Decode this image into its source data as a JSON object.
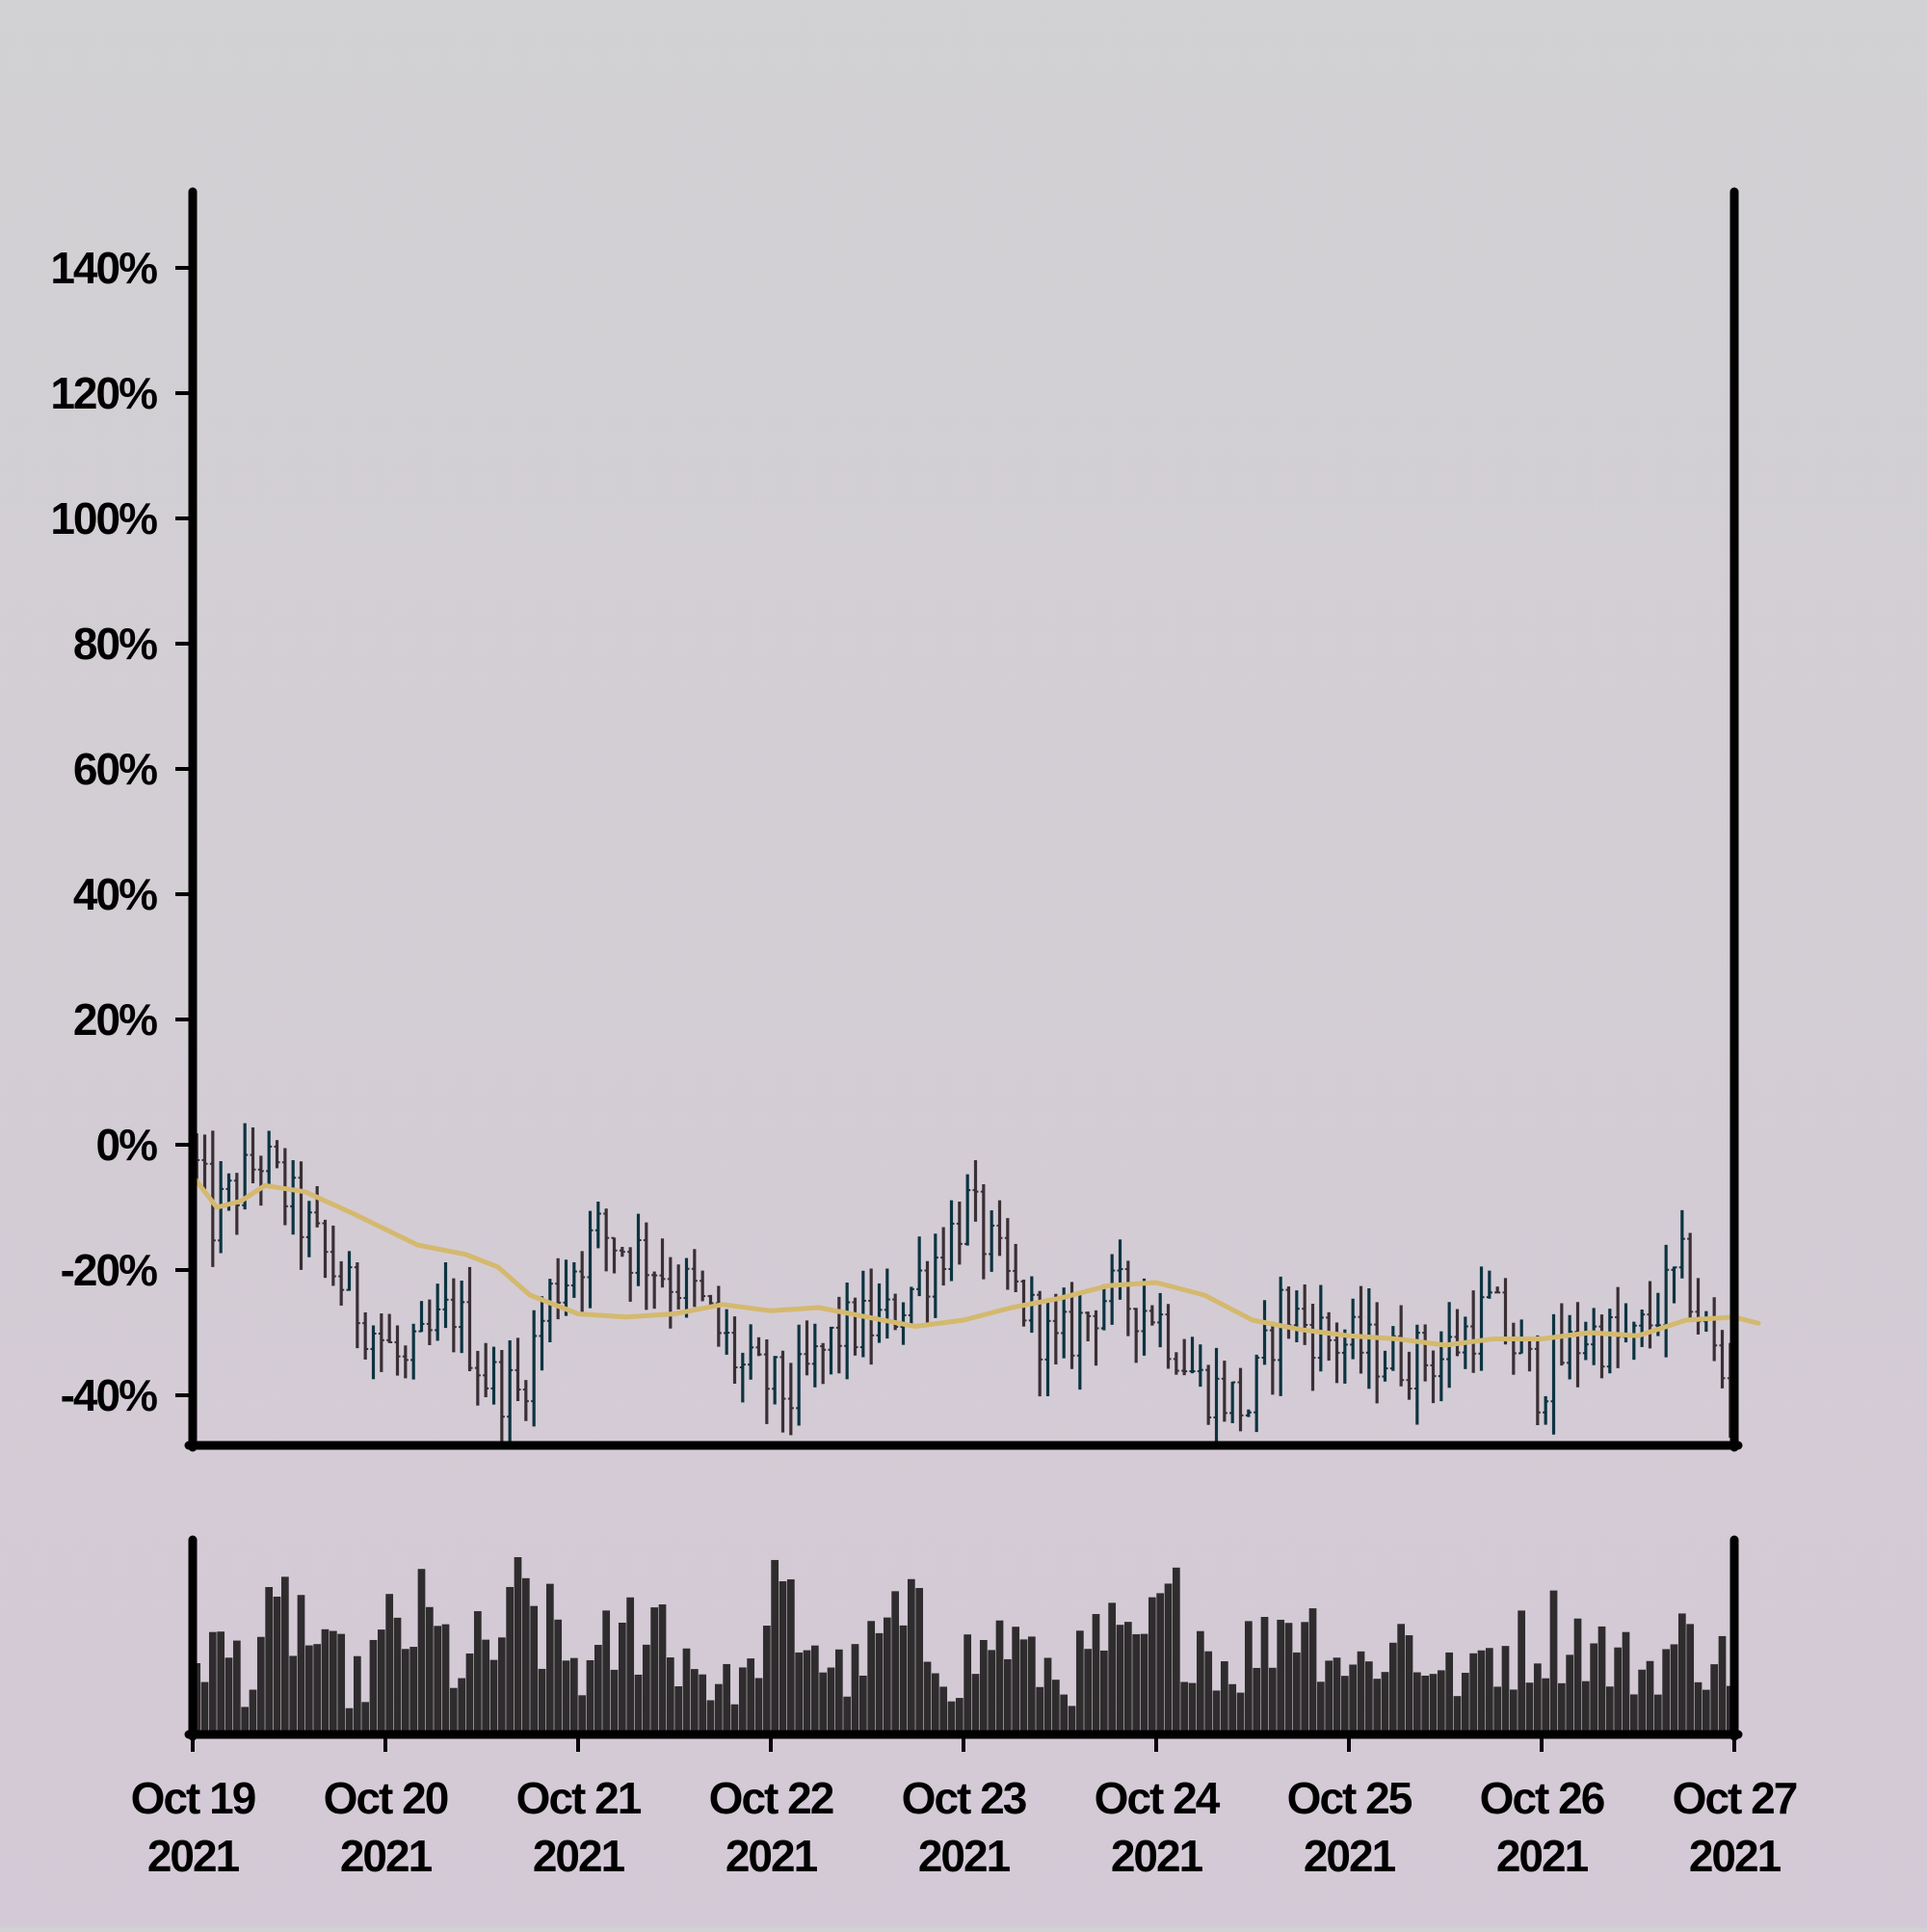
{
  "chart_data": {
    "type": "ohlc",
    "title": "",
    "xlabel": "",
    "ylabel": "",
    "y_axis": {
      "unit": "%",
      "ylim": [
        -48,
        152
      ],
      "ticks": [
        -40,
        -20,
        0,
        20,
        40,
        60,
        80,
        100,
        120,
        140
      ],
      "tick_labels": [
        "-40%",
        "-20%",
        "0%",
        "20%",
        "40%",
        "60%",
        "80%",
        "100%",
        "120%",
        "140%"
      ]
    },
    "x_axis": {
      "range": [
        "2021-10-19",
        "2021-10-27"
      ],
      "ticks": [
        {
          "date": "2021-10-19",
          "line1": "Oct 19",
          "line2": "2021"
        },
        {
          "date": "2021-10-20",
          "line1": "Oct 20",
          "line2": "2021"
        },
        {
          "date": "2021-10-21",
          "line1": "Oct 21",
          "line2": "2021"
        },
        {
          "date": "2021-10-22",
          "line1": "Oct 22",
          "line2": "2021"
        },
        {
          "date": "2021-10-23",
          "line1": "Oct 23",
          "line2": "2021"
        },
        {
          "date": "2021-10-24",
          "line1": "Oct 24",
          "line2": "2021"
        },
        {
          "date": "2021-10-25",
          "line1": "Oct 25",
          "line2": "2021"
        },
        {
          "date": "2021-10-26",
          "line1": "Oct 26",
          "line2": "2021"
        },
        {
          "date": "2021-10-27",
          "line1": "Oct 27",
          "line2": "2021"
        }
      ]
    },
    "series": [
      {
        "kind": "ohlc",
        "bar_interval_hours": 1,
        "up_color": "#0d3340",
        "down_color": "#3a2f35",
        "close_path": [
          {
            "t": "2021-10-19 00:00",
            "v": 0
          },
          {
            "t": "2021-10-19 03:00",
            "v": -12
          },
          {
            "t": "2021-10-19 09:00",
            "v": -2
          },
          {
            "t": "2021-10-19 15:00",
            "v": -14
          },
          {
            "t": "2021-10-19 21:00",
            "v": -26
          },
          {
            "t": "2021-10-20 03:00",
            "v": -36
          },
          {
            "t": "2021-10-20 09:00",
            "v": -26
          },
          {
            "t": "2021-10-20 13:00",
            "v": -37
          },
          {
            "t": "2021-10-20 17:00",
            "v": -40
          },
          {
            "t": "2021-10-20 21:00",
            "v": -24
          },
          {
            "t": "2021-10-21 03:00",
            "v": -14
          },
          {
            "t": "2021-10-21 09:00",
            "v": -18
          },
          {
            "t": "2021-10-21 15:00",
            "v": -24
          },
          {
            "t": "2021-10-21 21:00",
            "v": -36
          },
          {
            "t": "2021-10-22 03:00",
            "v": -40
          },
          {
            "t": "2021-10-22 09:00",
            "v": -30
          },
          {
            "t": "2021-10-22 15:00",
            "v": -28
          },
          {
            "t": "2021-10-22 21:00",
            "v": -18
          },
          {
            "t": "2021-10-23 01:00",
            "v": -10
          },
          {
            "t": "2021-10-23 06:00",
            "v": -22
          },
          {
            "t": "2021-10-23 12:00",
            "v": -33
          },
          {
            "t": "2021-10-23 18:00",
            "v": -24
          },
          {
            "t": "2021-10-24 00:00",
            "v": -26
          },
          {
            "t": "2021-10-24 06:00",
            "v": -38
          },
          {
            "t": "2021-10-24 12:00",
            "v": -42
          },
          {
            "t": "2021-10-24 16:00",
            "v": -26
          },
          {
            "t": "2021-10-24 22:00",
            "v": -31
          },
          {
            "t": "2021-10-25 06:00",
            "v": -34
          },
          {
            "t": "2021-10-25 12:00",
            "v": -34
          },
          {
            "t": "2021-10-25 18:00",
            "v": -26
          },
          {
            "t": "2021-10-26 00:00",
            "v": -38
          },
          {
            "t": "2021-10-26 06:00",
            "v": -30
          },
          {
            "t": "2021-10-26 12:00",
            "v": -32
          },
          {
            "t": "2021-10-26 18:00",
            "v": -20
          },
          {
            "t": "2021-10-27 00:00",
            "v": -40
          }
        ]
      },
      {
        "kind": "line",
        "role": "moving-average",
        "color": "#d4b96e",
        "points": [
          {
            "t": "2021-10-19 00:00",
            "v": -5
          },
          {
            "t": "2021-10-19 03:00",
            "v": -10
          },
          {
            "t": "2021-10-19 06:00",
            "v": -9
          },
          {
            "t": "2021-10-19 09:00",
            "v": -6.5
          },
          {
            "t": "2021-10-19 14:00",
            "v": -7.5
          },
          {
            "t": "2021-10-19 20:00",
            "v": -11
          },
          {
            "t": "2021-10-20 04:00",
            "v": -16
          },
          {
            "t": "2021-10-20 10:00",
            "v": -17.5
          },
          {
            "t": "2021-10-20 14:00",
            "v": -19.5
          },
          {
            "t": "2021-10-20 18:00",
            "v": -24
          },
          {
            "t": "2021-10-21 00:00",
            "v": -27
          },
          {
            "t": "2021-10-21 06:00",
            "v": -27.5
          },
          {
            "t": "2021-10-21 12:00",
            "v": -27
          },
          {
            "t": "2021-10-21 18:00",
            "v": -25.5
          },
          {
            "t": "2021-10-22 00:00",
            "v": -26.5
          },
          {
            "t": "2021-10-22 06:00",
            "v": -26
          },
          {
            "t": "2021-10-22 12:00",
            "v": -27.5
          },
          {
            "t": "2021-10-22 18:00",
            "v": -29
          },
          {
            "t": "2021-10-23 00:00",
            "v": -28
          },
          {
            "t": "2021-10-23 06:00",
            "v": -26
          },
          {
            "t": "2021-10-23 12:00",
            "v": -24.5
          },
          {
            "t": "2021-10-23 18:00",
            "v": -22.5
          },
          {
            "t": "2021-10-24 00:00",
            "v": -22
          },
          {
            "t": "2021-10-24 06:00",
            "v": -24
          },
          {
            "t": "2021-10-24 12:00",
            "v": -28
          },
          {
            "t": "2021-10-24 18:00",
            "v": -29.5
          },
          {
            "t": "2021-10-25 00:00",
            "v": -30.5
          },
          {
            "t": "2021-10-25 06:00",
            "v": -31
          },
          {
            "t": "2021-10-25 12:00",
            "v": -32
          },
          {
            "t": "2021-10-25 18:00",
            "v": -31
          },
          {
            "t": "2021-10-26 00:00",
            "v": -31
          },
          {
            "t": "2021-10-26 06:00",
            "v": -30
          },
          {
            "t": "2021-10-26 12:00",
            "v": -30.5
          },
          {
            "t": "2021-10-26 18:00",
            "v": -28
          },
          {
            "t": "2021-10-27 00:00",
            "v": -27.5
          },
          {
            "t": "2021-10-27 03:00",
            "v": -28.5
          }
        ]
      },
      {
        "kind": "volume-bars",
        "color": "#2f2c2e",
        "profile": [
          0.62,
          0.55,
          0.4,
          0.7,
          0.85,
          0.66,
          0.5,
          0.38,
          0.58,
          0.72,
          0.8,
          0.64,
          0.48,
          0.6,
          0.75,
          0.9,
          0.72,
          0.55,
          0.45,
          0.62,
          0.78,
          0.84,
          0.6,
          0.5,
          0.35,
          0.4,
          0.68,
          0.86,
          0.72,
          0.52,
          0.45,
          0.58,
          0.8,
          0.75,
          0.6,
          0.42,
          0.55,
          0.7,
          0.62,
          0.48,
          0.4,
          0.5,
          0.66,
          0.58,
          0.7,
          0.85,
          0.76,
          0.6,
          0.5,
          0.62,
          0.8,
          0.9,
          0.74,
          0.56,
          0.5,
          0.6,
          0.72,
          0.55,
          0.42,
          0.4,
          0.58,
          0.62,
          0.66,
          0.74,
          0.7,
          0.6,
          0.52,
          0.48,
          0.56,
          0.64,
          0.6,
          0.52
        ],
        "max_fraction_of_pane": 0.92
      }
    ],
    "grid": false,
    "legend": "none"
  }
}
